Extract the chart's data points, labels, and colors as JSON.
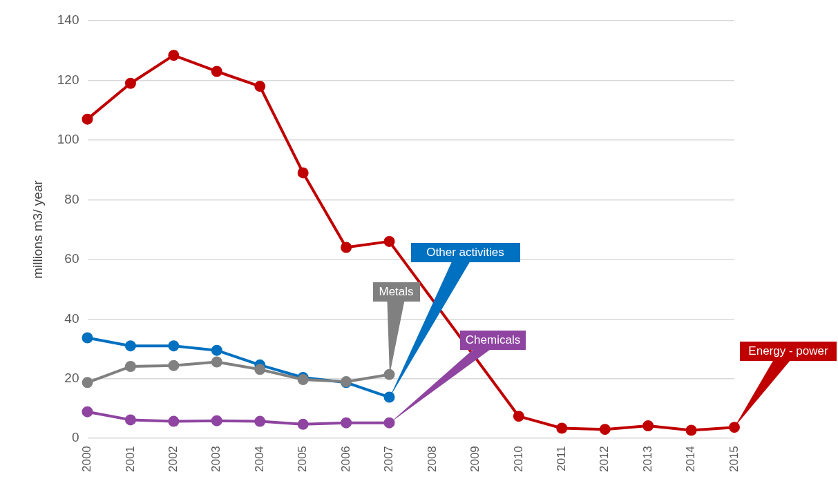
{
  "chart_data": {
    "type": "line",
    "ylabel": "millions m3/ year",
    "categories": [
      "2000",
      "2001",
      "2002",
      "2003",
      "2004",
      "2005",
      "2006",
      "2007",
      "2008",
      "2009",
      "2010",
      "2011",
      "2012",
      "2013",
      "2014",
      "2015"
    ],
    "ylim": [
      0,
      140
    ],
    "yticks": [
      0,
      20,
      40,
      60,
      80,
      100,
      120,
      140
    ],
    "grid": "y",
    "legend": false,
    "marker": "circle",
    "line_style": "solid",
    "series": [
      {
        "name": "Energy - power",
        "color": "#c00000",
        "values": [
          107,
          119,
          128.4,
          123,
          118,
          89,
          64,
          66,
          null,
          null,
          7.4,
          3.4,
          3,
          4.2,
          2.7,
          3.7
        ]
      },
      {
        "name": "Other activities",
        "color": "#0070c0",
        "values": [
          33.7,
          31,
          31,
          29.5,
          24.6,
          20.4,
          18.7,
          13.8,
          null,
          null,
          null,
          null,
          null,
          null,
          null,
          null
        ]
      },
      {
        "name": "Metals",
        "color": "#808080",
        "values": [
          18.7,
          24.1,
          24.4,
          25.6,
          23.1,
          19.7,
          19,
          21.4,
          null,
          null,
          null,
          null,
          null,
          null,
          null,
          null
        ]
      },
      {
        "name": "Chemicals",
        "color": "#8e44a0",
        "values": [
          8.9,
          6.2,
          5.7,
          5.9,
          5.7,
          4.7,
          5.2,
          5.2,
          null,
          null,
          null,
          null,
          null,
          null,
          null,
          null
        ]
      }
    ]
  }
}
